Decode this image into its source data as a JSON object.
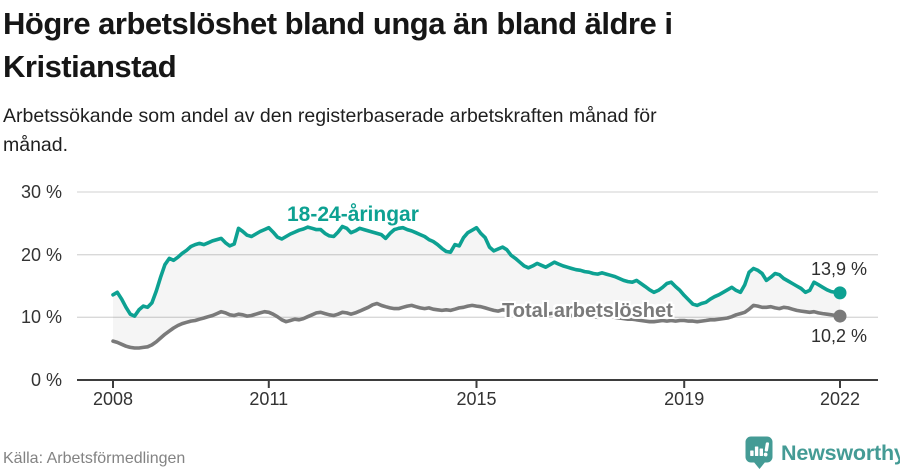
{
  "header": {
    "title_lines": [
      "Högre arbetslöshet bland unga än bland äldre i",
      "Kristianstad"
    ],
    "subtitle_lines": [
      "Arbetssökande som andel av den registerbaserade arbetskraften månad för",
      "månad."
    ]
  },
  "chart_data": {
    "type": "line",
    "x_start": "2008-01",
    "x_end": "2022-01",
    "x_interval": "monthly",
    "ylim": [
      0,
      30
    ],
    "grid": "horizontal",
    "legend_position": "inline-labels",
    "y_ticks": [
      {
        "value": 30,
        "label": "30 %"
      },
      {
        "value": 20,
        "label": "20 %"
      },
      {
        "value": 10,
        "label": "10 %"
      },
      {
        "value": 0,
        "label": "0 %"
      }
    ],
    "x_ticks": [
      {
        "label": "2008",
        "month_index": 0
      },
      {
        "label": "2011",
        "month_index": 36
      },
      {
        "label": "2015",
        "month_index": 84
      },
      {
        "label": "2019",
        "month_index": 132
      },
      {
        "label": "2022",
        "month_index": 168
      }
    ],
    "fill_between_series": true,
    "series": [
      {
        "name": "18-24-åringar",
        "color": "#0da192",
        "end_value": 13.9,
        "end_label": "13,9 %",
        "values": [
          13.6,
          14.0,
          12.9,
          11.6,
          10.5,
          10.2,
          11.2,
          11.8,
          11.6,
          12.3,
          14.2,
          16.4,
          18.4,
          19.4,
          19.1,
          19.6,
          20.2,
          20.7,
          21.3,
          21.6,
          21.8,
          21.6,
          21.9,
          22.2,
          22.4,
          22.6,
          21.9,
          21.4,
          21.7,
          24.2,
          23.7,
          23.1,
          22.9,
          23.3,
          23.7,
          24.0,
          24.3,
          23.6,
          22.8,
          22.5,
          22.9,
          23.3,
          23.6,
          23.9,
          24.1,
          24.4,
          24.2,
          24.0,
          24.0,
          23.4,
          23.0,
          22.9,
          23.6,
          24.5,
          24.2,
          23.5,
          23.8,
          24.2,
          24.0,
          23.8,
          23.6,
          23.4,
          23.2,
          22.6,
          23.4,
          24.0,
          24.2,
          24.3,
          24.0,
          23.8,
          23.5,
          23.2,
          22.9,
          22.4,
          22.1,
          21.6,
          21.0,
          20.5,
          20.4,
          21.6,
          21.4,
          22.7,
          23.5,
          23.9,
          24.3,
          23.4,
          22.7,
          21.2,
          20.6,
          20.9,
          21.2,
          20.8,
          19.9,
          19.4,
          18.8,
          18.2,
          17.9,
          18.2,
          18.6,
          18.3,
          18.0,
          18.4,
          18.8,
          18.5,
          18.2,
          18.0,
          17.8,
          17.6,
          17.5,
          17.3,
          17.2,
          17.0,
          16.9,
          17.1,
          16.9,
          16.7,
          16.5,
          16.2,
          15.9,
          15.7,
          15.6,
          15.9,
          15.4,
          14.9,
          14.4,
          14.0,
          14.3,
          14.8,
          15.4,
          15.6,
          14.9,
          14.3,
          13.5,
          12.8,
          12.1,
          11.9,
          12.2,
          12.4,
          12.9,
          13.3,
          13.6,
          14.0,
          14.4,
          14.8,
          14.3,
          14.0,
          15.2,
          17.2,
          17.8,
          17.5,
          17.0,
          15.9,
          16.4,
          17.0,
          16.8,
          16.2,
          15.8,
          15.4,
          15.0,
          14.6,
          14.0,
          14.3,
          15.6,
          15.2,
          14.8,
          14.4,
          14.1,
          14.0,
          13.9
        ]
      },
      {
        "name": "Total arbetslöshet",
        "color": "#7a7a7a",
        "end_value": 10.2,
        "end_label": "10,2 %",
        "values": [
          6.2,
          6.0,
          5.7,
          5.4,
          5.2,
          5.1,
          5.1,
          5.2,
          5.3,
          5.6,
          6.1,
          6.7,
          7.3,
          7.8,
          8.3,
          8.7,
          9.0,
          9.2,
          9.4,
          9.5,
          9.7,
          9.9,
          10.1,
          10.3,
          10.6,
          10.9,
          10.7,
          10.4,
          10.3,
          10.5,
          10.4,
          10.2,
          10.3,
          10.5,
          10.7,
          10.9,
          10.8,
          10.5,
          10.1,
          9.6,
          9.3,
          9.5,
          9.7,
          9.6,
          9.8,
          10.1,
          10.4,
          10.7,
          10.8,
          10.6,
          10.4,
          10.3,
          10.5,
          10.8,
          10.7,
          10.5,
          10.7,
          11.0,
          11.3,
          11.6,
          12.0,
          12.2,
          11.9,
          11.7,
          11.5,
          11.4,
          11.4,
          11.6,
          11.8,
          11.9,
          11.7,
          11.5,
          11.4,
          11.5,
          11.3,
          11.2,
          11.1,
          11.2,
          11.1,
          11.3,
          11.5,
          11.6,
          11.8,
          11.9,
          11.8,
          11.7,
          11.5,
          11.3,
          11.1,
          11.0,
          11.2,
          11.1,
          10.9,
          10.8,
          10.7,
          10.6,
          10.7,
          10.8,
          10.7,
          10.6,
          10.5,
          10.6,
          10.7,
          10.6,
          10.5,
          10.4,
          10.3,
          10.3,
          10.4,
          10.3,
          10.2,
          10.1,
          10.0,
          10.1,
          10.2,
          10.1,
          10.0,
          9.9,
          9.8,
          9.7,
          9.7,
          9.6,
          9.5,
          9.4,
          9.3,
          9.3,
          9.4,
          9.5,
          9.4,
          9.5,
          9.4,
          9.5,
          9.5,
          9.4,
          9.4,
          9.3,
          9.4,
          9.5,
          9.6,
          9.6,
          9.7,
          9.8,
          9.9,
          10.1,
          10.4,
          10.6,
          10.8,
          11.3,
          11.9,
          11.8,
          11.6,
          11.6,
          11.7,
          11.5,
          11.4,
          11.6,
          11.5,
          11.3,
          11.1,
          11.0,
          10.9,
          10.8,
          10.9,
          10.7,
          10.6,
          10.5,
          10.4,
          10.3,
          10.2
        ]
      }
    ]
  },
  "footer": {
    "source": "Källa: Arbetsförmedlingen",
    "logo_text": "Newsworthy",
    "logo_icon": "newsworthy-bar-chart-bubble-icon"
  },
  "colors": {
    "accent": "#0da192",
    "series_gray": "#7a7a7a",
    "grid": "#d9d9d9",
    "axis": "#3d3d3d",
    "title_text": "#161616",
    "tick_text": "#333333",
    "muted_text": "#838383",
    "logo_teal": "#449b95",
    "band_fill": "rgba(0,0,0,0.04)"
  }
}
